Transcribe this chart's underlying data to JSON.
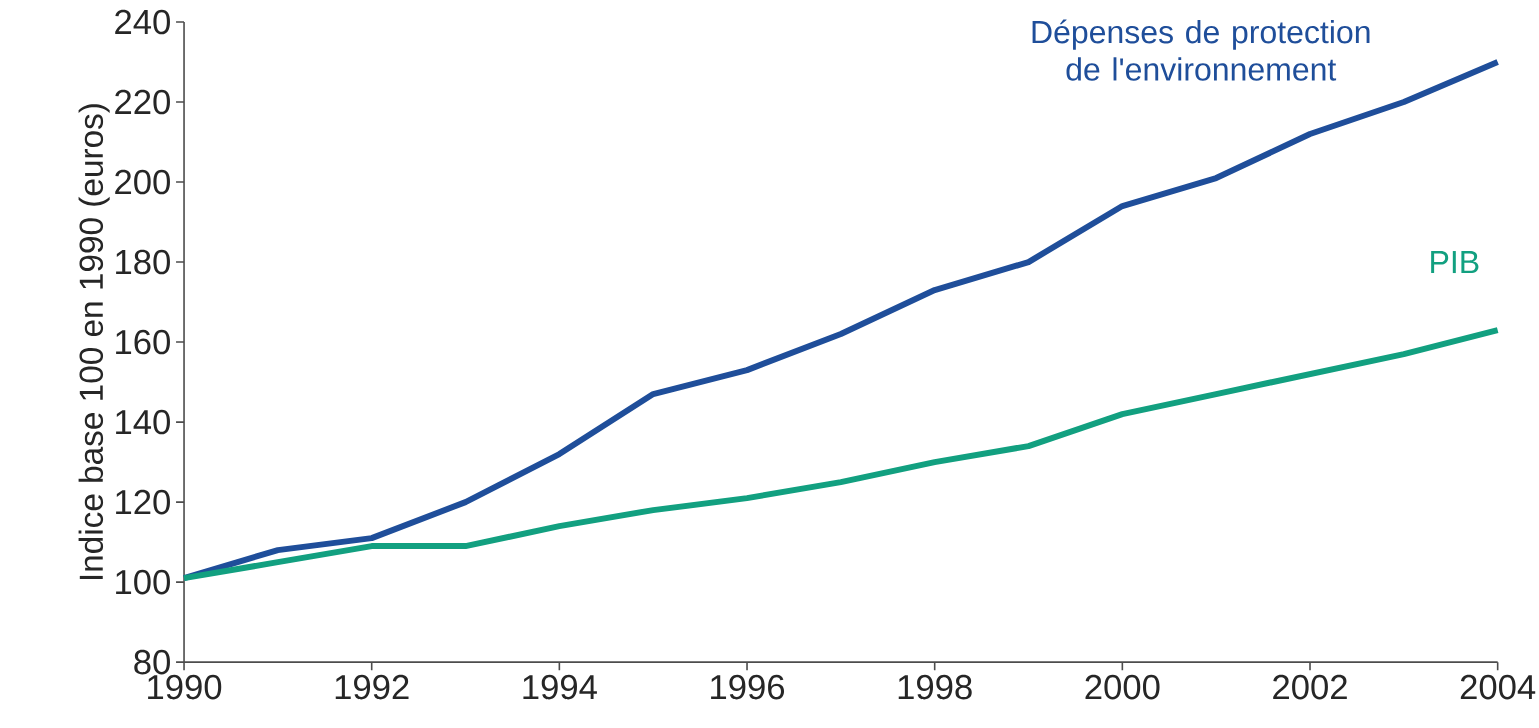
{
  "chart_data": {
    "type": "line",
    "ylabel": "Indice base 100 en 1990 (euros)",
    "x": [
      1990,
      1991,
      1992,
      1993,
      1994,
      1995,
      1996,
      1997,
      1998,
      1999,
      2000,
      2001,
      2002,
      2003,
      2004
    ],
    "series": [
      {
        "name": "Dépenses de protection de l'environnement",
        "color": "#1f4e9a",
        "values": [
          101,
          108,
          111,
          120,
          132,
          147,
          153,
          162,
          173,
          180,
          194,
          201,
          212,
          220,
          230
        ]
      },
      {
        "name": "PIB",
        "color": "#12a080",
        "values": [
          101,
          105,
          109,
          109,
          114,
          118,
          121,
          125,
          130,
          134,
          142,
          147,
          152,
          157,
          163
        ]
      }
    ],
    "xlim": [
      1990,
      2004
    ],
    "ylim": [
      80,
      240
    ],
    "xticks": [
      1990,
      1992,
      1994,
      1996,
      1998,
      2000,
      2002,
      2004
    ],
    "yticks": [
      80,
      100,
      120,
      140,
      160,
      180,
      200,
      220,
      240
    ],
    "grid": false,
    "legend": false,
    "marker": "none",
    "line_style": "solid"
  }
}
